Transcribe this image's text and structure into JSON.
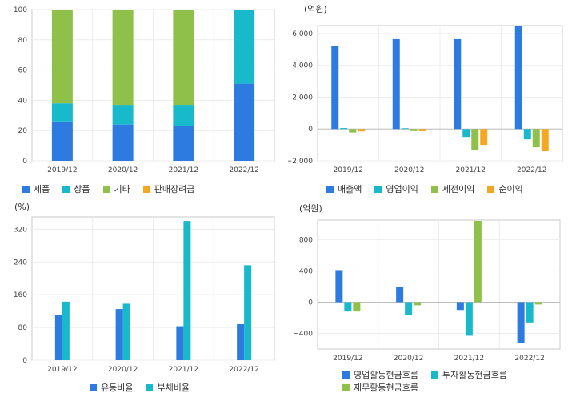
{
  "chart_data": [
    {
      "type": "bar",
      "stacked": true,
      "categories": [
        "2019/12",
        "2020/12",
        "2021/12",
        "2022/12"
      ],
      "series": [
        {
          "name": "제품",
          "color": "#2d7be0",
          "values": [
            26,
            24,
            23,
            51
          ]
        },
        {
          "name": "상품",
          "color": "#19b9cc",
          "values": [
            12,
            13,
            14,
            49
          ]
        },
        {
          "name": "기타",
          "color": "#8fc04a",
          "values": [
            62,
            63,
            63,
            0
          ]
        },
        {
          "name": "판매장려금",
          "color": "#f5a623",
          "values": [
            0,
            0,
            0,
            0
          ]
        }
      ],
      "unit": "",
      "ylim": [
        0,
        100
      ],
      "yticks": [
        "0",
        "20",
        "40",
        "60",
        "80",
        "100"
      ]
    },
    {
      "type": "bar",
      "categories": [
        "2019/12",
        "2020/12",
        "2021/12",
        "2022/12"
      ],
      "series": [
        {
          "name": "매출액",
          "color": "#2d7be0",
          "values": [
            5200,
            5650,
            5650,
            6450
          ]
        },
        {
          "name": "영업이익",
          "color": "#19b9cc",
          "values": [
            60,
            50,
            -500,
            -650
          ]
        },
        {
          "name": "세전이익",
          "color": "#8fc04a",
          "values": [
            -220,
            -130,
            -1350,
            -1150
          ]
        },
        {
          "name": "순이익",
          "color": "#f5a623",
          "values": [
            -150,
            -140,
            -1000,
            -1400
          ]
        }
      ],
      "unit": "(억원)",
      "ylim": [
        -2000,
        6500
      ],
      "yticks": [
        "−2,000",
        "0",
        "2,000",
        "4,000",
        "6,000"
      ],
      "ytick_values": [
        -2000,
        0,
        2000,
        4000,
        6000
      ]
    },
    {
      "type": "bar",
      "categories": [
        "2019/12",
        "2020/12",
        "2021/12",
        "2022/12"
      ],
      "series": [
        {
          "name": "유동비율",
          "color": "#2d7be0",
          "values": [
            110,
            125,
            83,
            88
          ]
        },
        {
          "name": "부채비율",
          "color": "#19b9cc",
          "values": [
            143,
            138,
            340,
            232
          ]
        }
      ],
      "unit": "(%)",
      "ylim": [
        0,
        350
      ],
      "yticks": [
        "0",
        "80",
        "160",
        "240",
        "320"
      ],
      "ytick_values": [
        0,
        80,
        160,
        240,
        320
      ]
    },
    {
      "type": "bar",
      "categories": [
        "2019/12",
        "2020/12",
        "2021/12",
        "2022/12"
      ],
      "series": [
        {
          "name": "영업활동현금흐름",
          "color": "#2d7be0",
          "values": [
            410,
            190,
            -100,
            -520
          ]
        },
        {
          "name": "투자활동현금흐름",
          "color": "#19b9cc",
          "values": [
            -120,
            -170,
            -430,
            -260
          ]
        },
        {
          "name": "재무활동현금흐름",
          "color": "#8fc04a",
          "values": [
            -120,
            -40,
            1040,
            -30
          ]
        }
      ],
      "unit": "(억원)",
      "ylim": [
        -600,
        1050
      ],
      "yticks": [
        "−400",
        "0",
        "400",
        "800"
      ],
      "ytick_values": [
        -400,
        0,
        400,
        800
      ]
    }
  ]
}
